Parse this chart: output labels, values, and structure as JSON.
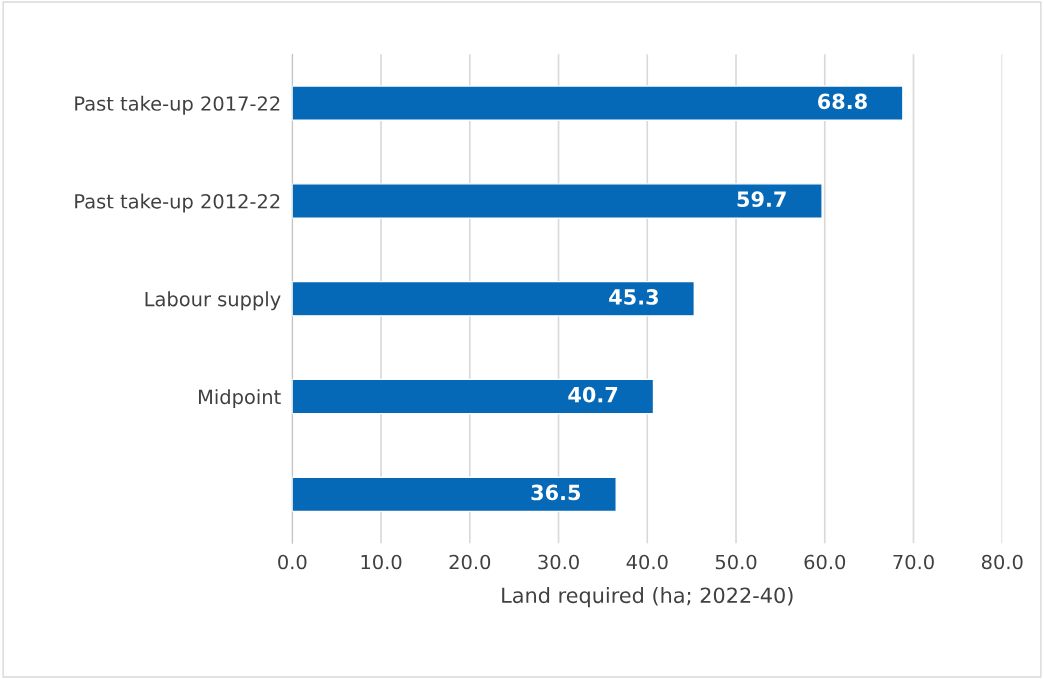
{
  "chart_data": {
    "type": "bar",
    "orientation": "horizontal",
    "categories": [
      "Past take-up 2017-22",
      "Past take-up 2012-22",
      "Labour supply",
      "Midpoint",
      null
    ],
    "values": [
      68.8,
      59.7,
      45.3,
      40.7,
      36.5
    ],
    "color": "#0569b7",
    "xlabel": "Land required (ha; 2022-40)",
    "xlim": [
      0,
      80
    ],
    "xticks": [
      {
        "value": 0,
        "label": "0.0"
      },
      {
        "value": 10,
        "label": "10.0"
      },
      {
        "value": 20,
        "label": "20.0"
      },
      {
        "value": 30,
        "label": "30.0"
      },
      {
        "value": 40,
        "label": "40.0"
      },
      {
        "value": 50,
        "label": "50.0"
      },
      {
        "value": 60,
        "label": "60.0"
      },
      {
        "value": 70,
        "label": "70.0"
      },
      {
        "value": 80,
        "label": "80.0"
      }
    ],
    "grid": "x",
    "data_labels": true
  }
}
